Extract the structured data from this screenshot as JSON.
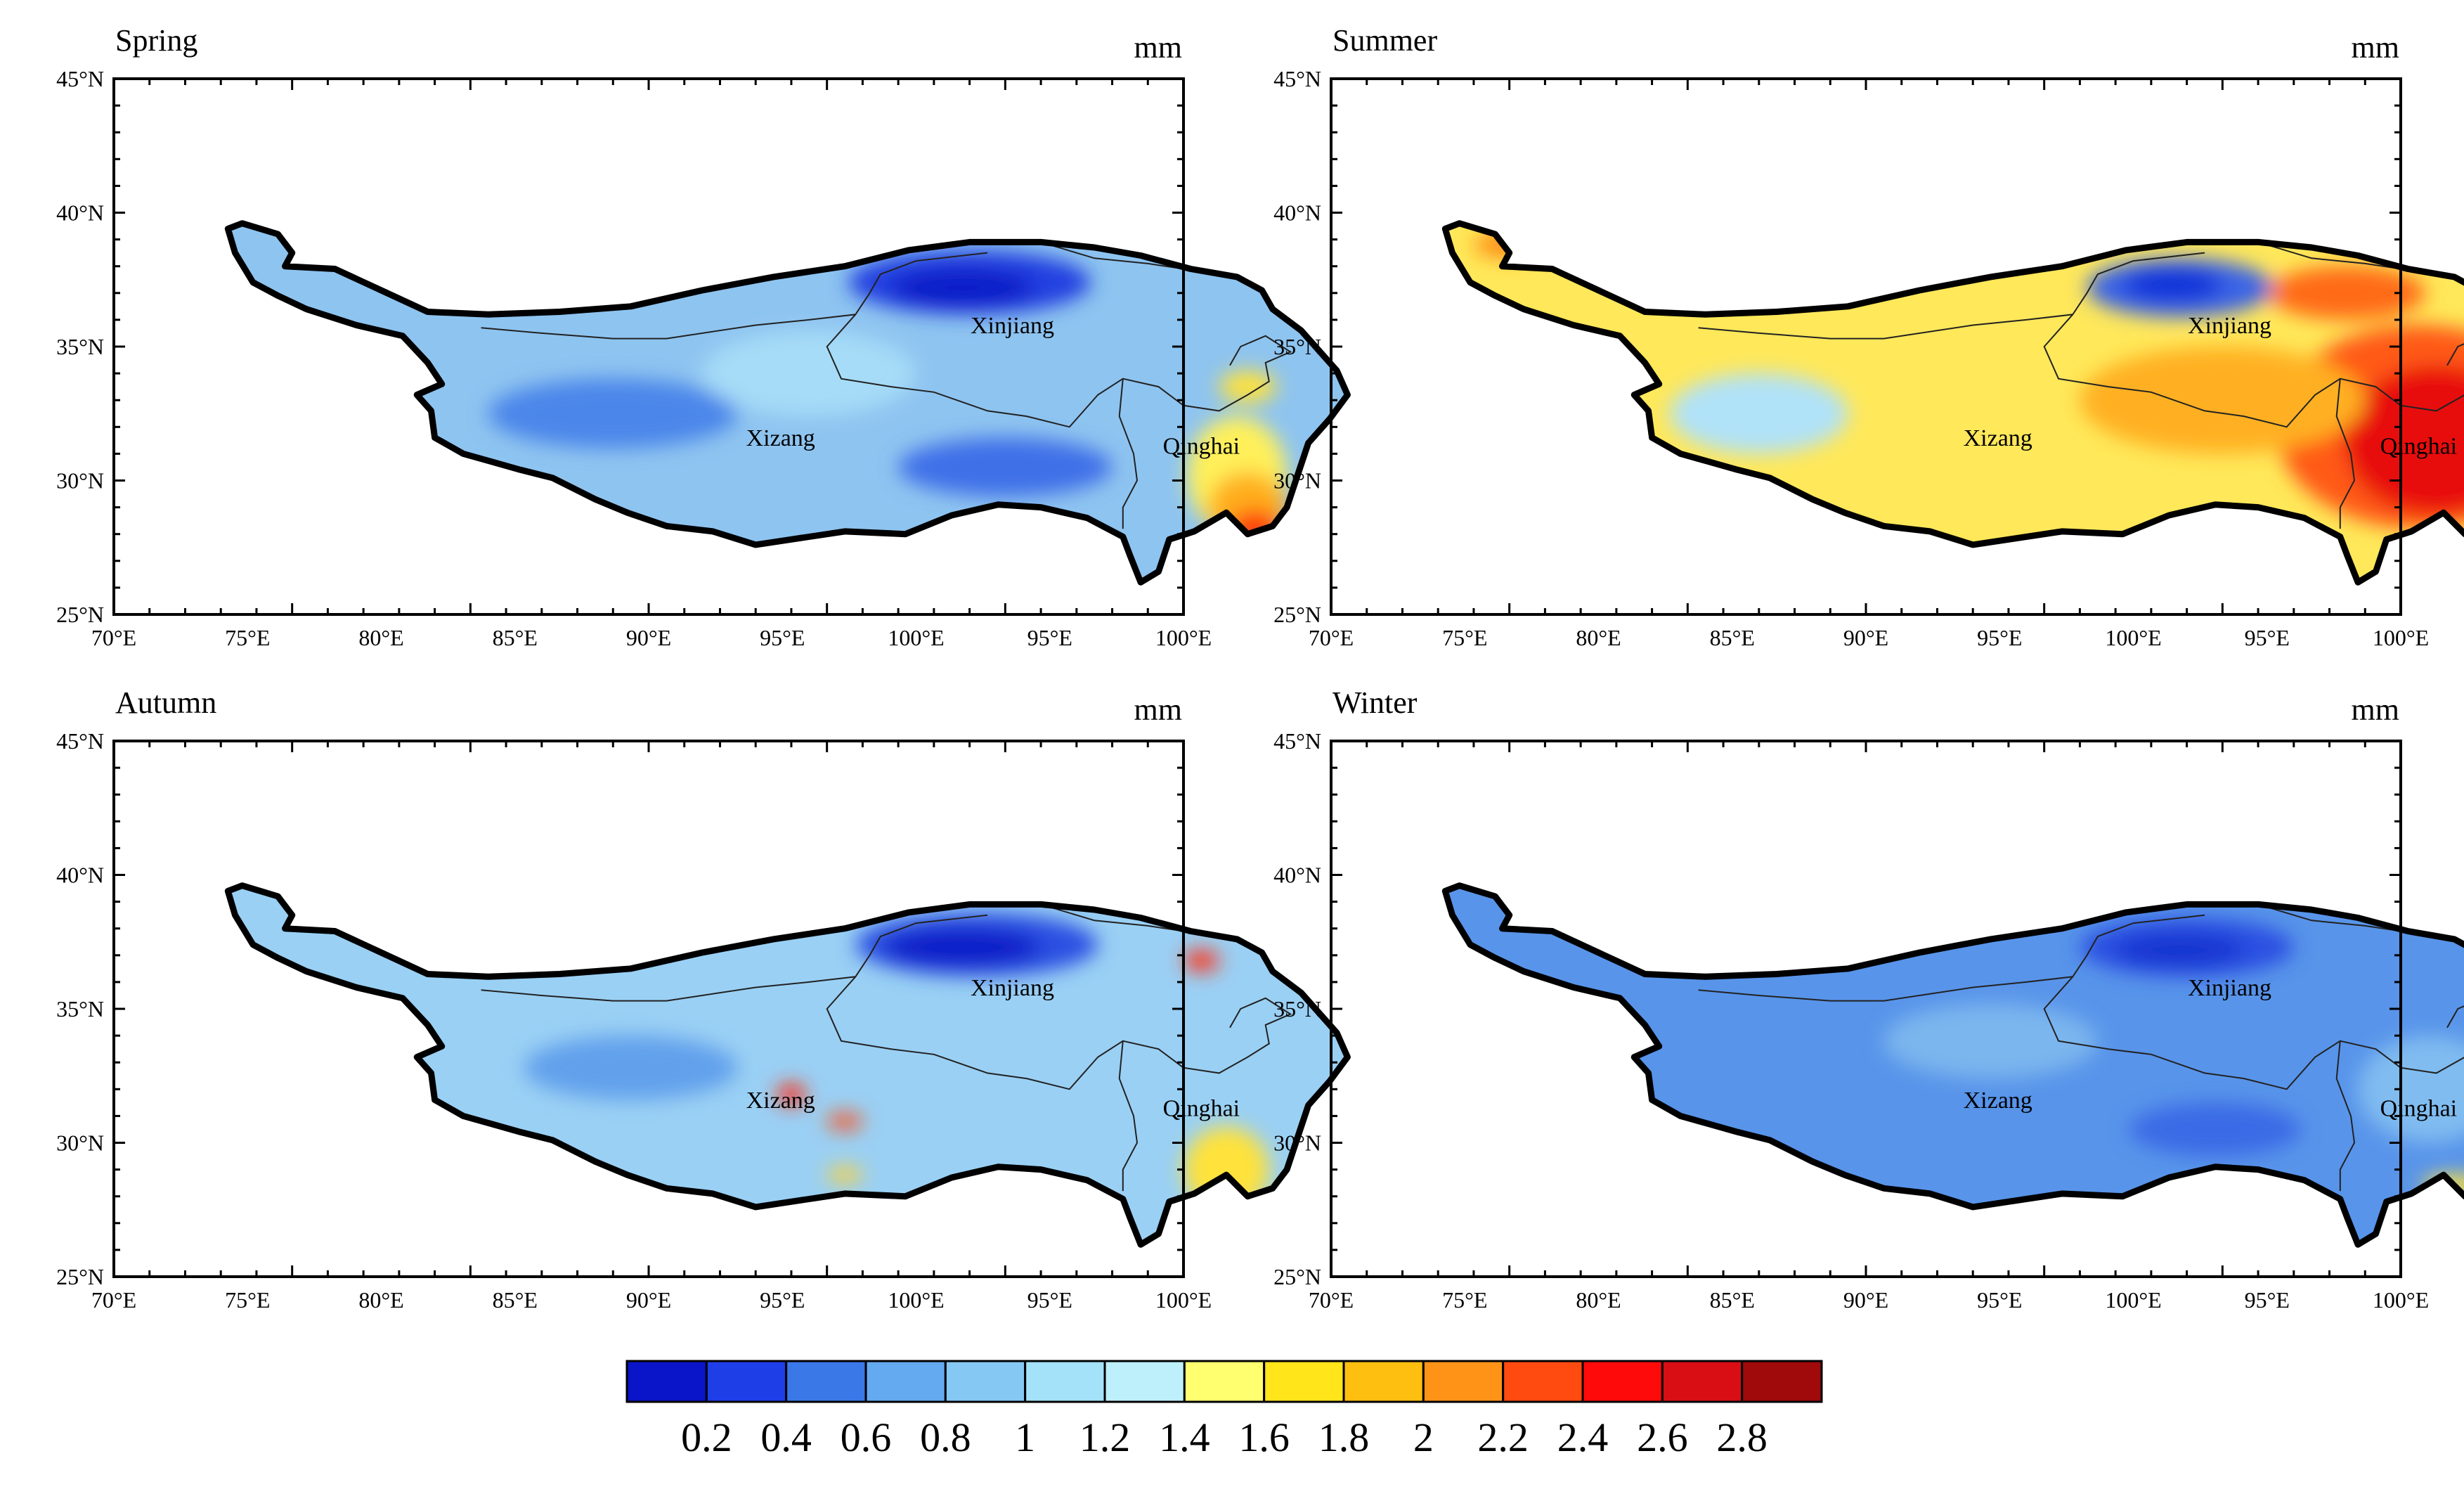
{
  "figure": {
    "unit": "mm",
    "lat_ticks": [
      "45°N",
      "40°N",
      "35°N",
      "30°N",
      "25°N"
    ],
    "lon_ticks": [
      "70°E",
      "75°E",
      "80°E",
      "85°E",
      "90°E",
      "95°E",
      "100°E",
      "95°E",
      "100°E"
    ],
    "regions": [
      "Xinjiang",
      "Xizang",
      "Qinghai"
    ]
  },
  "panels": [
    {
      "title": "Spring",
      "unit": "mm",
      "base": "#8ec4f0",
      "patches": [
        {
          "lon": 94.0,
          "lat": 37.4,
          "rx": 3.4,
          "ry": 1.2,
          "color": "#2040e0"
        },
        {
          "lon": 93.8,
          "lat": 37.2,
          "rx": 2.0,
          "ry": 0.7,
          "color": "#0d1fc8"
        },
        {
          "lon": 95.0,
          "lat": 30.5,
          "rx": 3.0,
          "ry": 1.1,
          "color": "#3f6fe8"
        },
        {
          "lon": 84.0,
          "lat": 32.5,
          "rx": 3.5,
          "ry": 1.3,
          "color": "#4c86ea"
        },
        {
          "lon": 89.5,
          "lat": 34.0,
          "rx": 3.0,
          "ry": 1.6,
          "color": "#a6dcf7"
        },
        {
          "lon": 101.5,
          "lat": 30.2,
          "rx": 1.4,
          "ry": 2.2,
          "color": "#fff05a"
        },
        {
          "lon": 101.8,
          "lat": 29.0,
          "rx": 1.1,
          "ry": 1.3,
          "color": "#ffae1a"
        },
        {
          "lon": 102.0,
          "lat": 28.2,
          "rx": 0.7,
          "ry": 0.7,
          "color": "#ff3a10"
        },
        {
          "lon": 101.8,
          "lat": 33.5,
          "rx": 0.8,
          "ry": 0.6,
          "color": "#ffe23a"
        }
      ]
    },
    {
      "title": "Summer",
      "unit": "mm",
      "base": "#ffe85a",
      "patches": [
        {
          "lon": 100.5,
          "lat": 32.0,
          "rx": 4.0,
          "ry": 3.8,
          "color": "#ff5a18"
        },
        {
          "lon": 101.0,
          "lat": 31.5,
          "rx": 2.6,
          "ry": 2.8,
          "color": "#e81010"
        },
        {
          "lon": 95.0,
          "lat": 33.0,
          "rx": 4.0,
          "ry": 2.0,
          "color": "#ffb020"
        },
        {
          "lon": 98.5,
          "lat": 37.0,
          "rx": 2.2,
          "ry": 1.0,
          "color": "#ff6a18"
        },
        {
          "lon": 93.8,
          "lat": 37.2,
          "rx": 2.6,
          "ry": 1.1,
          "color": "#3a64e6"
        },
        {
          "lon": 93.6,
          "lat": 37.3,
          "rx": 1.4,
          "ry": 0.6,
          "color": "#1030d8"
        },
        {
          "lon": 82.0,
          "lat": 32.5,
          "rx": 2.5,
          "ry": 1.5,
          "color": "#b0e2f8"
        },
        {
          "lon": 75.0,
          "lat": 38.8,
          "rx": 1.0,
          "ry": 0.5,
          "color": "#ff8c18"
        }
      ]
    },
    {
      "title": "Autumn",
      "unit": "mm",
      "base": "#9ad0f4",
      "patches": [
        {
          "lon": 94.2,
          "lat": 37.4,
          "rx": 3.4,
          "ry": 1.2,
          "color": "#2a50e2"
        },
        {
          "lon": 93.8,
          "lat": 37.3,
          "rx": 2.2,
          "ry": 0.7,
          "color": "#0d1fc8"
        },
        {
          "lon": 100.5,
          "lat": 36.8,
          "rx": 0.5,
          "ry": 0.4,
          "color": "#ff3018"
        },
        {
          "lon": 89.0,
          "lat": 31.8,
          "rx": 0.4,
          "ry": 0.4,
          "color": "#ff2a10"
        },
        {
          "lon": 90.5,
          "lat": 30.8,
          "rx": 0.5,
          "ry": 0.3,
          "color": "#ff5014"
        },
        {
          "lon": 101.2,
          "lat": 29.0,
          "rx": 1.2,
          "ry": 1.6,
          "color": "#ffe23a"
        },
        {
          "lon": 84.5,
          "lat": 32.8,
          "rx": 3.0,
          "ry": 1.2,
          "color": "#62a0ec"
        },
        {
          "lon": 90.5,
          "lat": 28.8,
          "rx": 0.5,
          "ry": 0.3,
          "color": "#ffd030"
        }
      ]
    },
    {
      "title": "Winter",
      "unit": "mm",
      "base": "#5894ea",
      "patches": [
        {
          "lon": 94.0,
          "lat": 37.3,
          "rx": 3.0,
          "ry": 1.1,
          "color": "#2a50e2"
        },
        {
          "lon": 93.8,
          "lat": 37.2,
          "rx": 1.8,
          "ry": 0.6,
          "color": "#1434d0"
        },
        {
          "lon": 94.8,
          "lat": 30.5,
          "rx": 2.4,
          "ry": 1.0,
          "color": "#3a6ae6"
        },
        {
          "lon": 88.5,
          "lat": 33.8,
          "rx": 3.0,
          "ry": 1.4,
          "color": "#7cb6ee"
        },
        {
          "lon": 100.8,
          "lat": 32.0,
          "rx": 2.0,
          "ry": 2.0,
          "color": "#80bcf0"
        },
        {
          "lon": 101.5,
          "lat": 28.4,
          "rx": 0.9,
          "ry": 0.4,
          "color": "#ffe23a"
        }
      ]
    }
  ],
  "colorbar": {
    "colors": [
      "#0a14c8",
      "#1e3ee8",
      "#3a78e8",
      "#64aaf0",
      "#86c8f4",
      "#a4e2fa",
      "#bef0fc",
      "#ffff70",
      "#ffe51a",
      "#ffbf10",
      "#ff9318",
      "#ff4a10",
      "#ff0a0a",
      "#d80e14",
      "#a00a0a"
    ],
    "labels": [
      "0.2",
      "0.4",
      "0.6",
      "0.8",
      "1",
      "1.2",
      "1.4",
      "1.6",
      "1.8",
      "2",
      "2.2",
      "2.4",
      "2.6",
      "2.8"
    ]
  }
}
